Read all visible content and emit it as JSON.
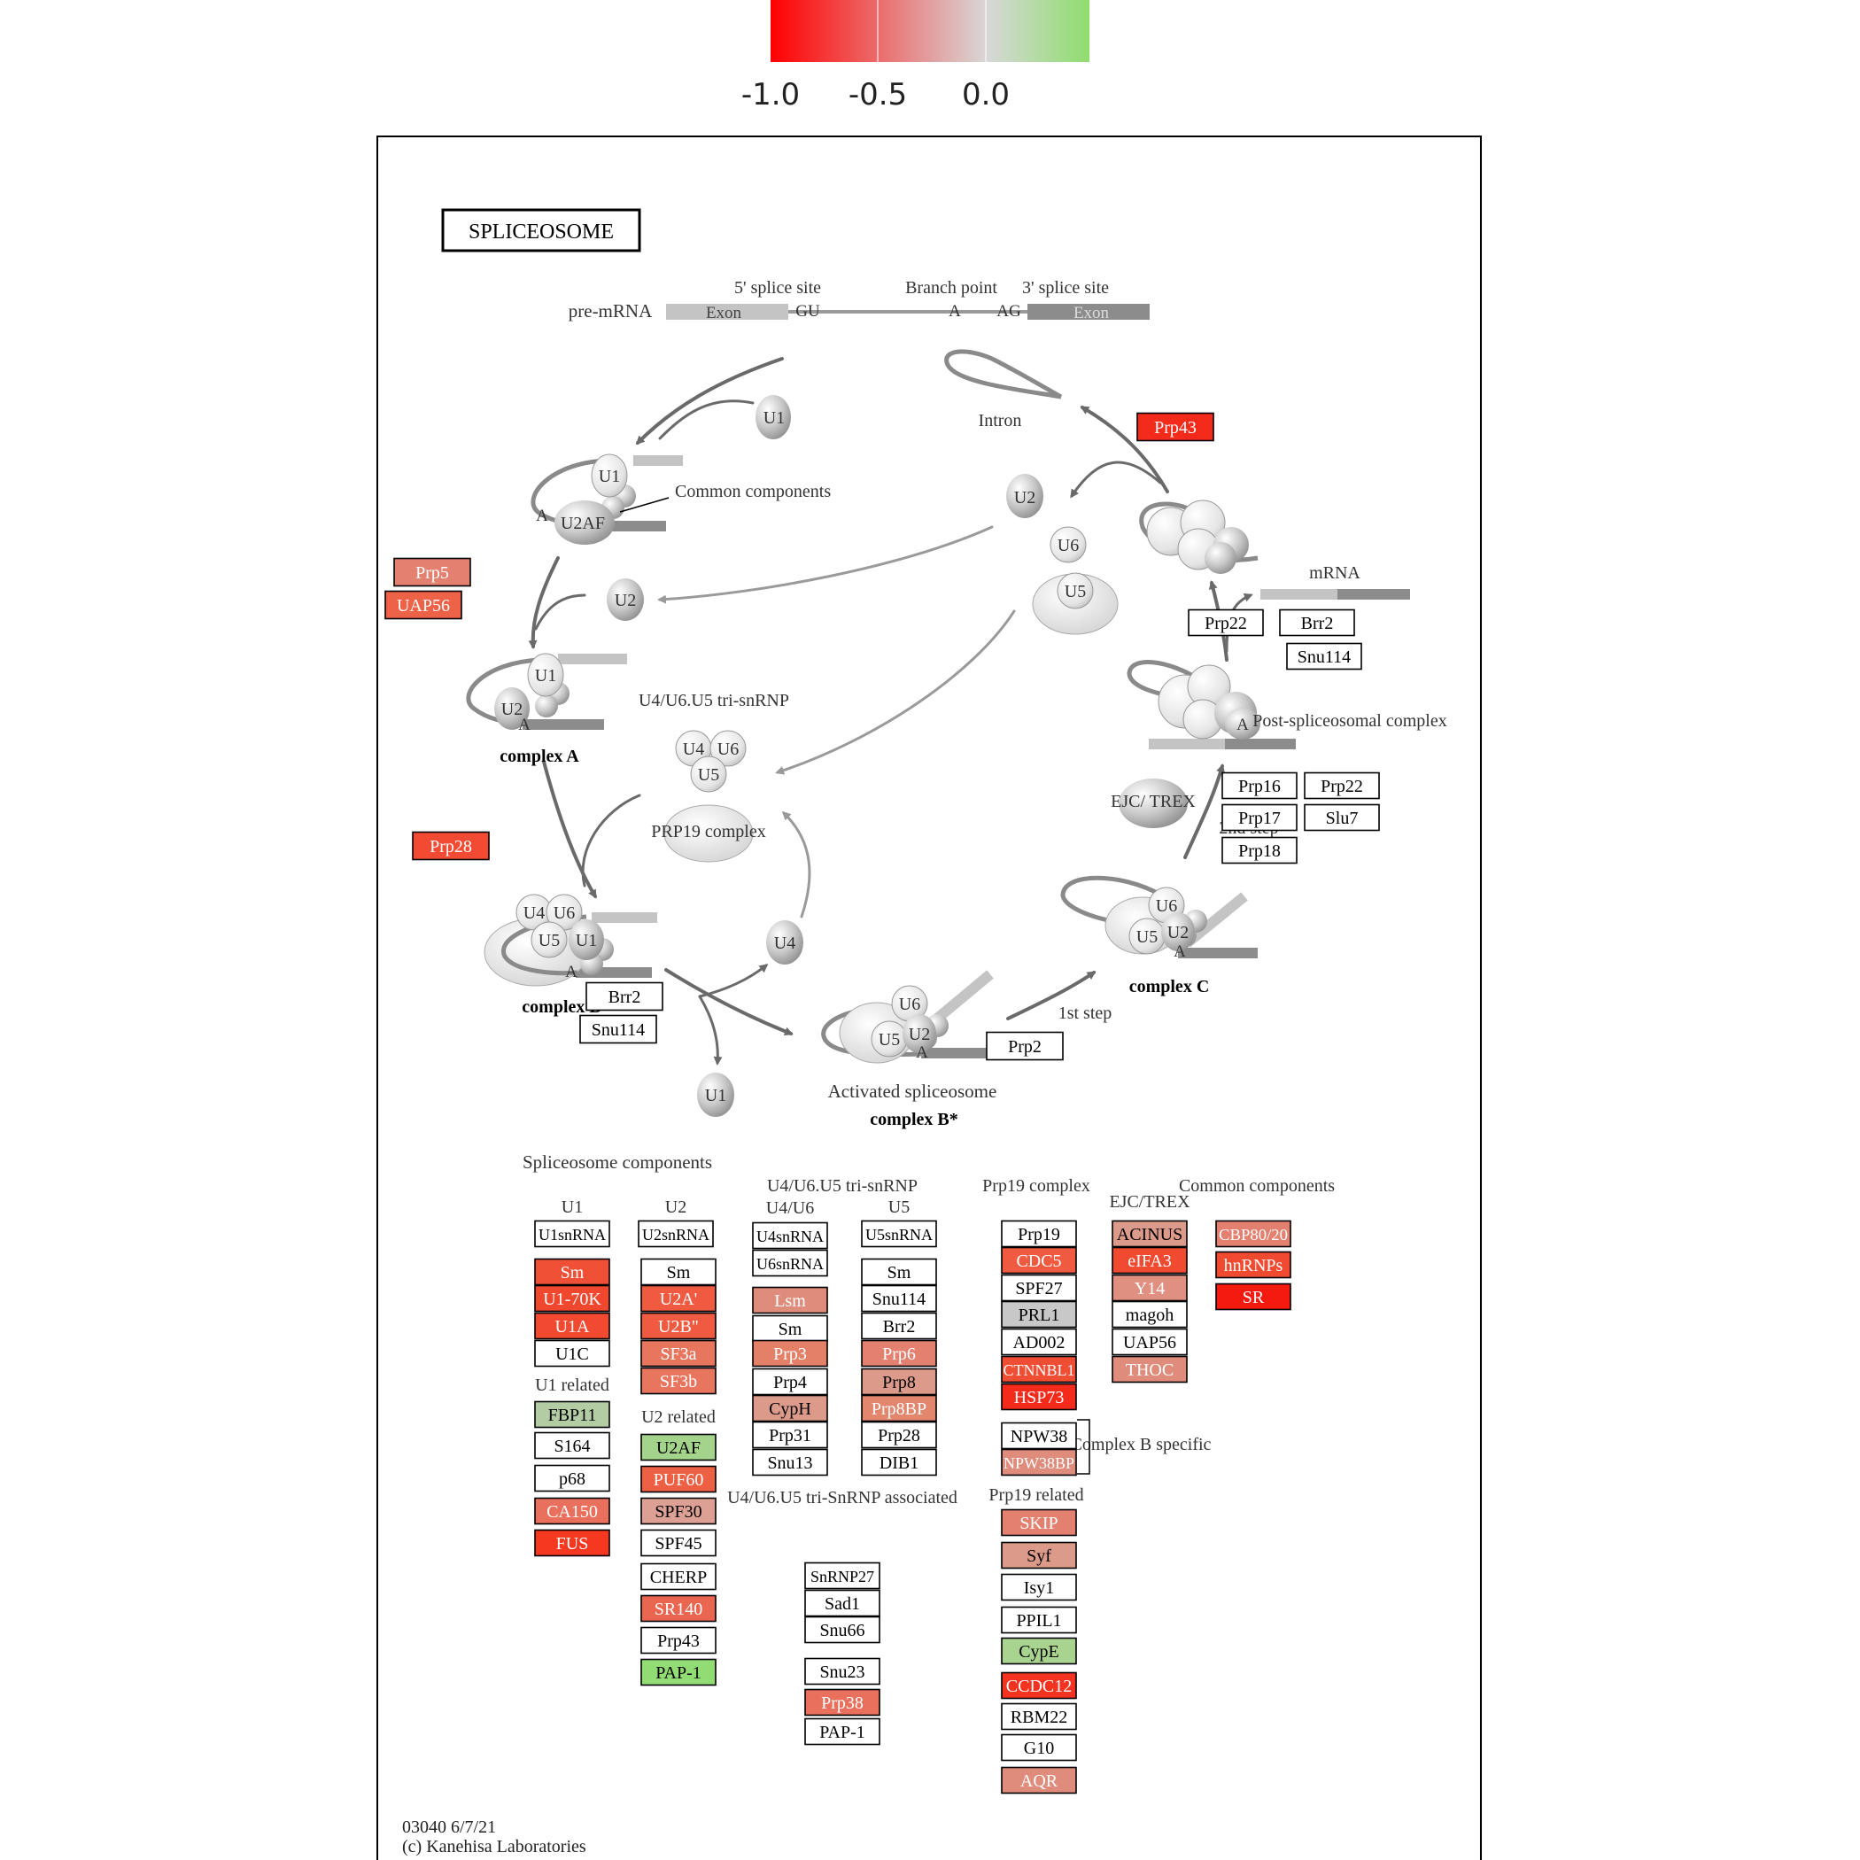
{
  "legend": {
    "colors": [
      "#ff0000",
      "#d8d8d8",
      "#8fdd6e"
    ],
    "ticks": [
      "-1.0",
      "-0.5",
      "0.0"
    ]
  },
  "diagram": {
    "title": "SPLICEOSOME",
    "premrna": {
      "label": "pre-mRNA",
      "five_site": "5' splice site",
      "branch_point": "Branch point",
      "three_site": "3' splice site",
      "exon1": "Exon",
      "gu": "GU",
      "a": "A",
      "ag": "AG",
      "exon2": "Exon"
    },
    "cycle": {
      "u1_top": "U1",
      "intron": "Intron",
      "common_components": "Common components",
      "early_u1": "U1",
      "u2af": "U2AF",
      "a_early": "A",
      "u2_right": "U2",
      "u6_free": "U6",
      "u5_free": "U5",
      "mrna": "mRNA",
      "u2_left": "U2",
      "a_u1": "U1",
      "a_u2": "U2",
      "a_a": "A",
      "complex_a": "complex A",
      "tri_snrnp": "U4/U6.U5 tri-snRNP",
      "tri_u4": "U4",
      "tri_u6": "U6",
      "tri_u5": "U5",
      "prp19_complex": "PRP19 complex",
      "post_a": "A",
      "post_complex": "Post-spliceosomal complex",
      "ejc_trex": "EJC/ TREX",
      "second_step": "2nd step",
      "b_u4": "U4",
      "b_u6": "U6",
      "b_u5": "U5",
      "b_u1": "U1",
      "b_a": "A",
      "complex_b": "complex B",
      "u4_free": "U4",
      "u1_bottom": "U1",
      "bstar_u6": "U6",
      "bstar_u5": "U5",
      "bstar_u2": "U2",
      "bstar_a": "A",
      "activated": "Activated spliceosome",
      "complex_bstar": "complex B*",
      "first_step": "1st step",
      "c_u6": "U6",
      "c_u5": "U5",
      "c_u2": "U2",
      "c_a": "A",
      "complex_c": "complex C"
    },
    "components": {
      "heading": "Spliceosome components",
      "u1": "U1",
      "u1_related": "U1 related",
      "u2": "U2",
      "u2_related": "U2 related",
      "tri": "U4/U6.U5 tri-snRNP",
      "u4u6": "U4/U6",
      "u5": "U5",
      "tri_assoc": "U4/U6.U5 tri-SnRNP associated",
      "prp19": "Prp19 complex",
      "prp19_related": "Prp19 related",
      "complex_b_specific": "Complex B specific",
      "ejc": "EJC/TREX",
      "common": "Common components"
    },
    "footer": {
      "code": "03040 6/7/21",
      "copyright": "(c) Kanehisa Laboratories"
    }
  },
  "nodes": [
    {
      "label": "Prp43",
      "fill": "#f42a1b"
    },
    {
      "label": "Prp5",
      "fill": "#e48070"
    },
    {
      "label": "UAP56",
      "fill": "#ee6248"
    },
    {
      "label": "Prp28",
      "fill": "#f24a33"
    },
    {
      "label": "Prp22",
      "fill": "#ffffff"
    },
    {
      "label": "Brr2",
      "fill": "#ffffff"
    },
    {
      "label": "Snu114",
      "fill": "#ffffff"
    },
    {
      "label": "Prp16",
      "fill": "#ffffff"
    },
    {
      "label": "Prp22",
      "fill": "#ffffff"
    },
    {
      "label": "Prp17",
      "fill": "#ffffff"
    },
    {
      "label": "Slu7",
      "fill": "#ffffff"
    },
    {
      "label": "Prp18",
      "fill": "#ffffff"
    },
    {
      "label": "Brr2",
      "fill": "#ffffff"
    },
    {
      "label": "Snu114",
      "fill": "#ffffff"
    },
    {
      "label": "Prp2",
      "fill": "#ffffff"
    },
    {
      "label": "U1snRNA",
      "fill": "#ffffff"
    },
    {
      "label": "Sm",
      "fill": "#f05036"
    },
    {
      "label": "U1-70K",
      "fill": "#f0482f"
    },
    {
      "label": "U1A",
      "fill": "#f14a30"
    },
    {
      "label": "U1C",
      "fill": "#ffffff"
    },
    {
      "label": "FBP11",
      "fill": "#b4cca4"
    },
    {
      "label": "S164",
      "fill": "#ffffff"
    },
    {
      "label": "p68",
      "fill": "#ffffff"
    },
    {
      "label": "CA150",
      "fill": "#e8705c"
    },
    {
      "label": "FUS",
      "fill": "#f63820"
    },
    {
      "label": "U2snRNA",
      "fill": "#ffffff"
    },
    {
      "label": "Sm",
      "fill": "#ffffff"
    },
    {
      "label": "U2A'",
      "fill": "#ef5a40"
    },
    {
      "label": "U2B\"",
      "fill": "#ef5a40"
    },
    {
      "label": "SF3a",
      "fill": "#e8765e"
    },
    {
      "label": "SF3b",
      "fill": "#e8765e"
    },
    {
      "label": "U2AF",
      "fill": "#a4d48c"
    },
    {
      "label": "PUF60",
      "fill": "#ee6044"
    },
    {
      "label": "SPF30",
      "fill": "#dca094"
    },
    {
      "label": "SPF45",
      "fill": "#ffffff"
    },
    {
      "label": "CHERP",
      "fill": "#ffffff"
    },
    {
      "label": "SR140",
      "fill": "#ea6650"
    },
    {
      "label": "Prp43",
      "fill": "#ffffff"
    },
    {
      "label": "PAP-1",
      "fill": "#92dc74"
    },
    {
      "label": "U4snRNA",
      "fill": "#ffffff"
    },
    {
      "label": "U6snRNA",
      "fill": "#ffffff"
    },
    {
      "label": "Lsm",
      "fill": "#e08c7c"
    },
    {
      "label": "Sm",
      "fill": "#ffffff"
    },
    {
      "label": "Prp3",
      "fill": "#e58068"
    },
    {
      "label": "Prp4",
      "fill": "#ffffff"
    },
    {
      "label": "CypH",
      "fill": "#dc9a8a"
    },
    {
      "label": "Prp31",
      "fill": "#ffffff"
    },
    {
      "label": "Snu13",
      "fill": "#ffffff"
    },
    {
      "label": "U5snRNA",
      "fill": "#ffffff"
    },
    {
      "label": "Sm",
      "fill": "#ffffff"
    },
    {
      "label": "Snu114",
      "fill": "#ffffff"
    },
    {
      "label": "Brr2",
      "fill": "#ffffff"
    },
    {
      "label": "Prp6",
      "fill": "#e48070"
    },
    {
      "label": "Prp8",
      "fill": "#dc9a8a"
    },
    {
      "label": "Prp8BP",
      "fill": "#e2866e"
    },
    {
      "label": "Prp28",
      "fill": "#ffffff"
    },
    {
      "label": "DIB1",
      "fill": "#ffffff"
    },
    {
      "label": "SnRNP27",
      "fill": "#ffffff"
    },
    {
      "label": "Sad1",
      "fill": "#ffffff"
    },
    {
      "label": "Snu66",
      "fill": "#ffffff"
    },
    {
      "label": "Snu23",
      "fill": "#ffffff"
    },
    {
      "label": "Prp38",
      "fill": "#e8705c"
    },
    {
      "label": "PAP-1",
      "fill": "#ffffff"
    },
    {
      "label": "Prp19",
      "fill": "#ffffff"
    },
    {
      "label": "CDC5",
      "fill": "#ef5a40"
    },
    {
      "label": "SPF27",
      "fill": "#ffffff"
    },
    {
      "label": "PRL1",
      "fill": "#c8c8c8"
    },
    {
      "label": "AD002",
      "fill": "#ffffff"
    },
    {
      "label": "CTNNBL1",
      "fill": "#f04e34"
    },
    {
      "label": "HSP73",
      "fill": "#f42a1b"
    },
    {
      "label": "NPW38",
      "fill": "#ffffff"
    },
    {
      "label": "NPW38BP",
      "fill": "#e08c7c"
    },
    {
      "label": "SKIP",
      "fill": "#e48070"
    },
    {
      "label": "Syf",
      "fill": "#dc9a8a"
    },
    {
      "label": "Isy1",
      "fill": "#ffffff"
    },
    {
      "label": "PPIL1",
      "fill": "#ffffff"
    },
    {
      "label": "CypE",
      "fill": "#a8d490"
    },
    {
      "label": "CCDC12",
      "fill": "#f43420"
    },
    {
      "label": "RBM22",
      "fill": "#ffffff"
    },
    {
      "label": "G10",
      "fill": "#ffffff"
    },
    {
      "label": "AQR",
      "fill": "#e08c7c"
    },
    {
      "label": "ACINUS",
      "fill": "#dc9a8a"
    },
    {
      "label": "eIFA3",
      "fill": "#f04a30"
    },
    {
      "label": "Y14",
      "fill": "#e09080"
    },
    {
      "label": "magoh",
      "fill": "#ffffff"
    },
    {
      "label": "UAP56",
      "fill": "#ffffff"
    },
    {
      "label": "THOC",
      "fill": "#e08c7c"
    },
    {
      "label": "CBP80/20",
      "fill": "#e48070"
    },
    {
      "label": "hnRNPs",
      "fill": "#f04a30"
    },
    {
      "label": "SR",
      "fill": "#f41a10"
    }
  ]
}
